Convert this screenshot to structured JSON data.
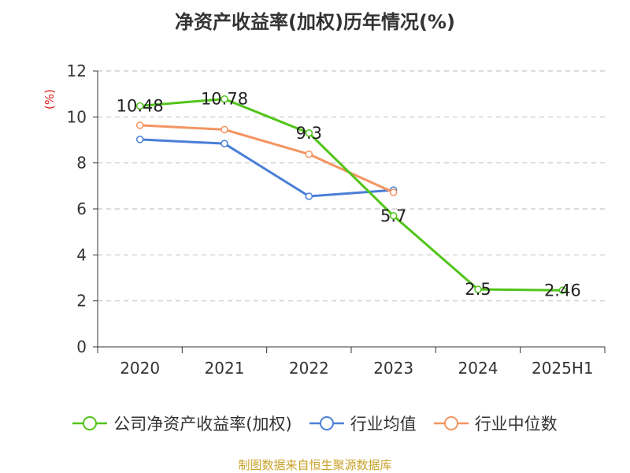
{
  "chart_data": {
    "type": "line",
    "title": "净资产收益率(加权)历年情况(%)",
    "ylabel": "(%)",
    "xlabel": "",
    "categories": [
      "2020",
      "2021",
      "2022",
      "2023",
      "2024",
      "2025H1"
    ],
    "ylim": [
      0,
      12
    ],
    "yticks": [
      0,
      2,
      4,
      6,
      8,
      10,
      12
    ],
    "grid": true,
    "legend_position": "bottom",
    "series": [
      {
        "name": "公司净资产收益率(加权)",
        "color": "#52c41a",
        "values": [
          10.48,
          10.78,
          9.3,
          5.7,
          2.5,
          2.46
        ],
        "data_labels": [
          "10.48",
          "10.78",
          "9.3",
          "5.7",
          "2.5",
          "2.46"
        ]
      },
      {
        "name": "行业均值",
        "color": "#4a7fd6",
        "values": [
          9.02,
          8.84,
          6.55,
          6.82,
          null,
          null
        ]
      },
      {
        "name": "行业中位数",
        "color": "#f39562",
        "values": [
          9.64,
          9.45,
          8.38,
          6.72,
          null,
          null
        ]
      }
    ]
  },
  "source_note": "制图数据来自恒生聚源数据库"
}
